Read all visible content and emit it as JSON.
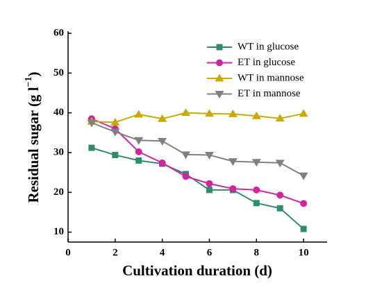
{
  "chart_data": {
    "type": "line",
    "xlabel": "Cultivation duration (d)",
    "ylabel": {
      "text": "Residual sugar (g l",
      "sup": "−1",
      "end": ")"
    },
    "x": [
      1,
      2,
      3,
      4,
      5,
      6,
      7,
      8,
      9,
      10
    ],
    "series": [
      {
        "name": "WT in glucose",
        "color": "#2e8b6e",
        "marker": "square",
        "values": [
          31.2,
          29.4,
          28.0,
          27.2,
          24.6,
          20.6,
          20.6,
          17.3,
          16.0,
          10.8
        ]
      },
      {
        "name": "ET in glucose",
        "color": "#d0259f",
        "marker": "circle",
        "values": [
          38.5,
          36.0,
          30.2,
          27.4,
          24.0,
          22.2,
          20.9,
          20.6,
          19.3,
          17.2
        ]
      },
      {
        "name": "WT in mannose",
        "color": "#c8aa00",
        "marker": "triangle-up",
        "values": [
          37.8,
          37.6,
          39.6,
          38.5,
          40.0,
          39.8,
          39.7,
          39.2,
          38.6,
          39.8
        ]
      },
      {
        "name": "ET in mannose",
        "color": "#808080",
        "marker": "triangle-down",
        "values": [
          37.5,
          35.2,
          33.1,
          32.9,
          29.5,
          29.4,
          27.8,
          27.6,
          27.4,
          24.2
        ]
      }
    ],
    "xlim": [
      0,
      11
    ],
    "xticks": [
      0,
      2,
      4,
      6,
      8,
      10
    ],
    "ylim": [
      7.5,
      60
    ],
    "yticks": [
      10,
      20,
      30,
      40,
      50,
      60
    ],
    "grid": false,
    "legend": "upper right"
  }
}
